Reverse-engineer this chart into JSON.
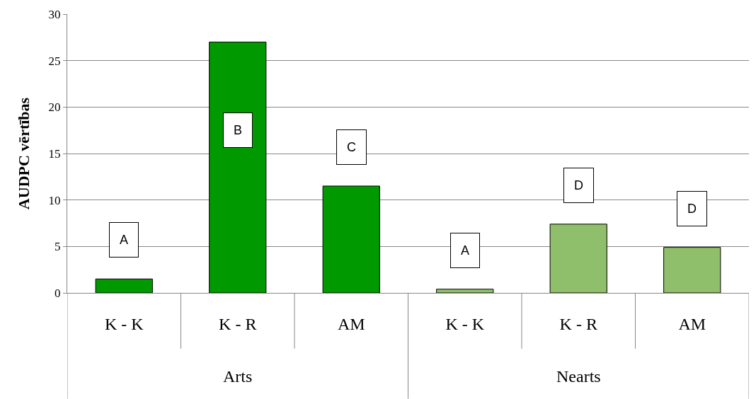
{
  "chart_data": {
    "type": "bar",
    "ylabel": "AUDPC vērtības",
    "categories": [
      "K - K",
      "K - R",
      "AM",
      "K - K",
      "K - R",
      "AM"
    ],
    "values": [
      1.5,
      27,
      11.5,
      0.4,
      7.4,
      4.9
    ],
    "colors": [
      "#009900",
      "#009900",
      "#009900",
      "#8fbf6a",
      "#8fbf6a",
      "#8fbf6a"
    ],
    "ylim": [
      0,
      30
    ],
    "yticks": [
      0,
      5,
      10,
      15,
      20,
      25,
      30
    ],
    "grid": "y",
    "legend": false,
    "annotations": [
      "A",
      "B",
      "C",
      "A",
      "D",
      "D",
      "Arts",
      "Nearts"
    ]
  }
}
